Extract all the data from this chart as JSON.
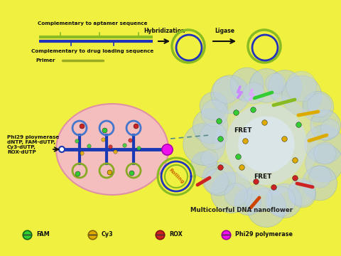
{
  "bg_color": "#f0f040",
  "top_labels": {
    "comp_aptamer": "Complementary to aptamer sequence",
    "comp_drug": "Complementary to drug loading sequence",
    "primer": "Primer",
    "hybridization": "Hybridization",
    "ligase": "Ligase"
  },
  "left_labels": {
    "phi29": "Phi29 ploymerase\ndNTP, FAM-dUTP,\nCy3-dUTP,\nROX-dUTP"
  },
  "bottom_label": "Multicolorful DNA nanoflower",
  "rolling_label": "Rolling",
  "fret_label": "FRET",
  "legend": [
    {
      "label": "FAM",
      "color": "#33cc33",
      "edge": "#116611"
    },
    {
      "label": "Cy3",
      "color": "#ddaa00",
      "edge": "#886600"
    },
    {
      "label": "ROX",
      "color": "#cc2222",
      "edge": "#881111"
    },
    {
      "label": "Phi29 polymerase",
      "color": "#ee11ee",
      "edge": "#990099"
    }
  ],
  "strand_green": "#88bb22",
  "strand_blue": "#2233bb",
  "strand_olive": "#99aa22",
  "arrow_color": "#222222",
  "pink_fill": "#f5b8d0",
  "pink_edge": "#dd88aa",
  "nf_color": "#b0c4de",
  "nf_edge": "#7890aa",
  "lightning1": "#cc88ff",
  "lightning2": "#ffaaff"
}
